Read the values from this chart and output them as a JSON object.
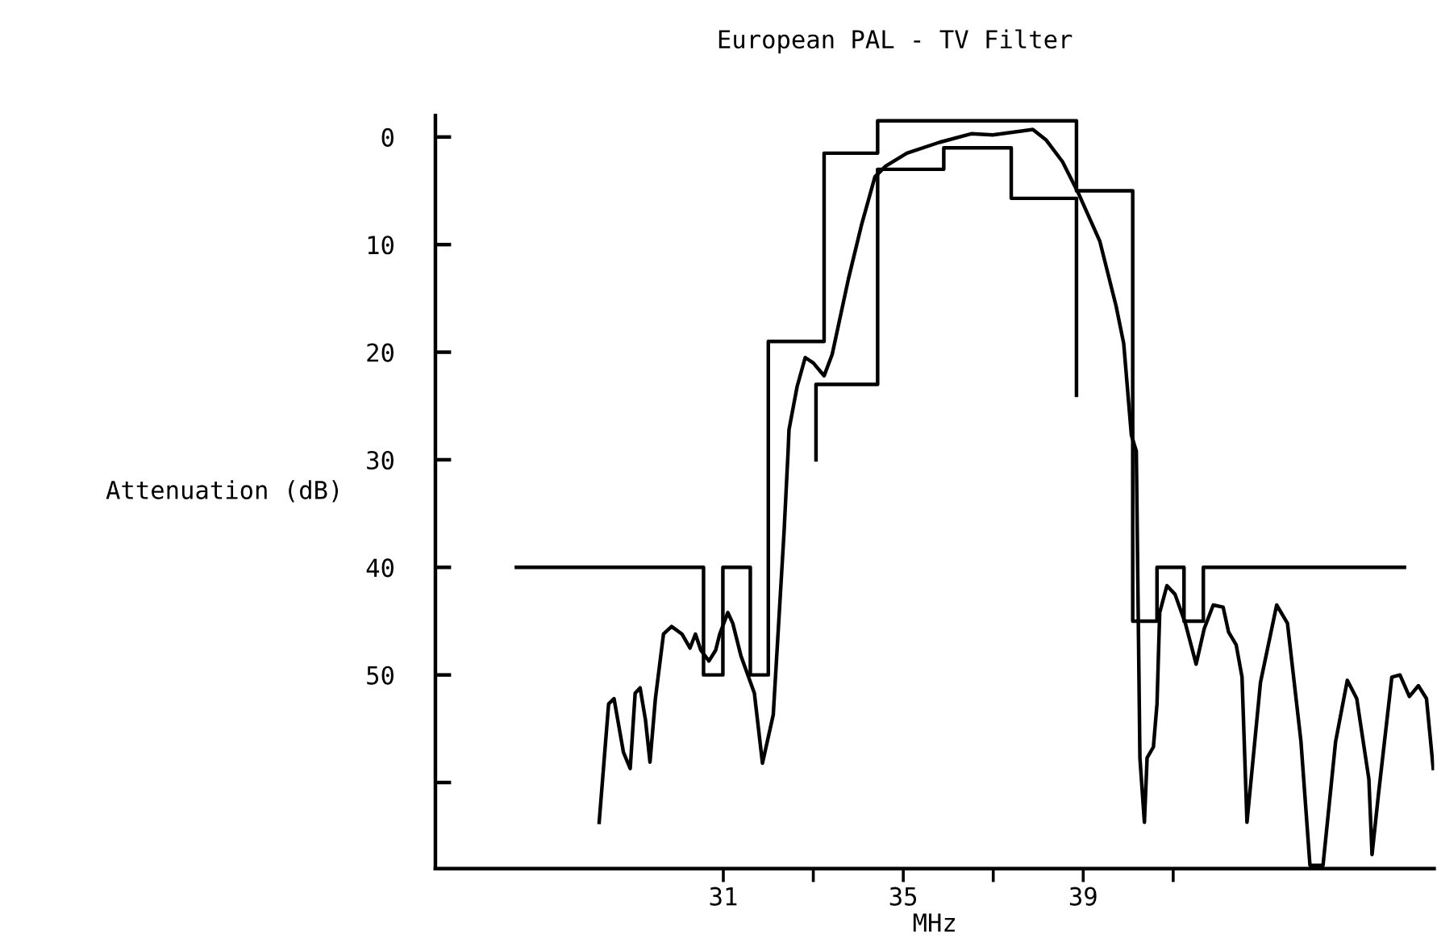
{
  "chart_data": {
    "type": "line",
    "title": "European PAL - TV Filter",
    "xlabel": "MHz",
    "ylabel": "Attenuation (dB)",
    "xlim": [
      24.6,
      46.8
    ],
    "ylim": [
      68,
      -2
    ],
    "xticks": [
      31,
      {
        "value": 33,
        "label": null
      },
      35,
      {
        "value": 37,
        "label": null
      },
      39,
      {
        "value": 41,
        "label": null
      }
    ],
    "yticks": [
      0,
      10,
      20,
      30,
      40,
      50,
      {
        "value": 60,
        "label": null
      }
    ],
    "grid": false,
    "marker": "none",
    "line_style": "solid",
    "series": [
      {
        "color": "#000000",
        "x": [
          26.4,
          30.56,
          30.56,
          30.99,
          30.99,
          31.6,
          31.6,
          32.0,
          32.0,
          33.24,
          33.24,
          34.43,
          34.43,
          38.85,
          38.85,
          40.1,
          40.1,
          40.64,
          40.64,
          41.24,
          41.24,
          41.67,
          41.67,
          46.14
        ],
        "values": [
          40,
          40,
          50,
          50,
          40,
          40,
          50,
          50,
          19,
          19,
          1.5,
          1.5,
          -1.5,
          -1.5,
          5,
          5,
          45,
          45,
          40,
          40,
          45,
          45,
          40,
          40
        ]
      },
      {
        "color": "#000000",
        "x": [
          33.06,
          33.06,
          34.43,
          34.43,
          35.9,
          35.9,
          37.4,
          37.4,
          38.85,
          38.85
        ],
        "values": [
          30,
          23,
          23,
          3,
          3,
          1,
          1,
          5.7,
          5.7,
          24
        ]
      },
      {
        "color": "#000000",
        "x": [
          28.24,
          28.45,
          28.57,
          28.78,
          28.93,
          29.04,
          29.15,
          29.27,
          29.37,
          29.49,
          29.67,
          29.85,
          30.08,
          30.26,
          30.38,
          30.5,
          30.68,
          30.83,
          30.92,
          31.1,
          31.21,
          31.39,
          31.69,
          31.87,
          32.11,
          32.35,
          32.44,
          32.46,
          32.64,
          32.82,
          33.0,
          33.24,
          33.42,
          33.78,
          34.07,
          34.37,
          34.61,
          35.08,
          35.8,
          36.51,
          36.99,
          37.88,
          38.18,
          38.54,
          38.89,
          39.37,
          39.73,
          39.9,
          40.07,
          40.18,
          40.26,
          40.36,
          40.42,
          40.56,
          40.64,
          40.7,
          40.86,
          41.04,
          41.27,
          41.51,
          41.69,
          41.89,
          42.11,
          42.23,
          42.4,
          42.53,
          42.64,
          42.94,
          43.3,
          43.54,
          43.84,
          44.04,
          44.33,
          44.61,
          44.87,
          45.08,
          45.35,
          45.42,
          45.56,
          45.86,
          46.04,
          46.25,
          46.45,
          46.63,
          46.78
        ],
        "values": [
          63.7,
          52.7,
          52.2,
          57.2,
          58.7,
          51.7,
          51.2,
          54.2,
          58.1,
          52.2,
          46.2,
          45.5,
          46.2,
          47.5,
          46.2,
          47.7,
          48.7,
          47.7,
          46.2,
          44.2,
          45.2,
          48.2,
          51.7,
          58.2,
          53.7,
          36.7,
          29.2,
          27.2,
          23.2,
          20.5,
          21.0,
          22.2,
          20.2,
          13.2,
          8.2,
          3.7,
          2.7,
          1.5,
          0.5,
          -0.3,
          -0.2,
          -0.7,
          0.3,
          2.3,
          5.2,
          9.7,
          15.7,
          19.2,
          27.7,
          29.2,
          57.7,
          63.7,
          57.7,
          56.7,
          52.7,
          44.2,
          41.7,
          42.5,
          45.2,
          49.0,
          45.7,
          43.5,
          43.7,
          46.0,
          47.2,
          50.2,
          63.7,
          50.7,
          43.5,
          45.2,
          56.2,
          67.7,
          67.7,
          56.2,
          50.5,
          52.2,
          59.7,
          66.7,
          61.2,
          50.2,
          50.0,
          52.0,
          51.0,
          52.2,
          58.7
        ]
      }
    ]
  }
}
